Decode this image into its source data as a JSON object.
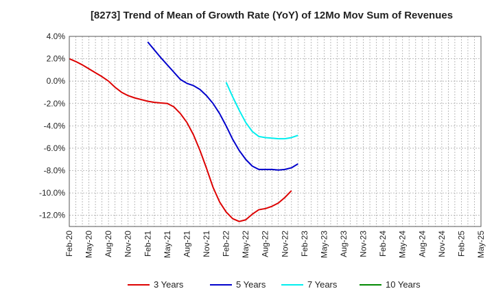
{
  "chart_data": {
    "type": "line",
    "title": "[8273]  Trend of Mean of Growth Rate (YoY) of 12Mo Mov Sum of Revenues",
    "xlabel": "",
    "ylabel": "",
    "ylim": [
      -13.0,
      4.0
    ],
    "y_ticks": [
      4.0,
      2.0,
      0.0,
      -2.0,
      -4.0,
      -6.0,
      -8.0,
      -10.0,
      -12.0
    ],
    "y_tick_labels": [
      "4.0%",
      "2.0%",
      "0.0%",
      "-2.0%",
      "-4.0%",
      "-6.0%",
      "-8.0%",
      "-10.0%",
      "-12.0%"
    ],
    "x_tick_labels": [
      "Feb-20",
      "May-20",
      "Aug-20",
      "Nov-20",
      "Feb-21",
      "May-21",
      "Aug-21",
      "Nov-21",
      "Feb-22",
      "May-22",
      "Aug-22",
      "Nov-22",
      "Feb-23",
      "May-23",
      "Aug-23",
      "Nov-23",
      "Feb-24",
      "May-24",
      "Aug-24",
      "Nov-24",
      "Feb-25",
      "May-25"
    ],
    "grid": true,
    "legend_position": "bottom",
    "series": [
      {
        "name": "3 Years",
        "color": "#dd0000",
        "start_index": 0,
        "values": [
          2.0,
          1.75,
          1.45,
          1.1,
          0.75,
          0.4,
          0.0,
          -0.55,
          -1.0,
          -1.3,
          -1.5,
          -1.65,
          -1.8,
          -1.9,
          -1.95,
          -2.0,
          -2.3,
          -2.9,
          -3.7,
          -4.8,
          -6.2,
          -7.8,
          -9.5,
          -10.8,
          -11.7,
          -12.3,
          -12.55,
          -12.4,
          -11.9,
          -11.5,
          -11.4,
          -11.2,
          -10.9,
          -10.4,
          -9.8
        ]
      },
      {
        "name": "5 Years",
        "color": "#0000cc",
        "start_index": 12,
        "values": [
          3.5,
          2.8,
          2.1,
          1.45,
          0.8,
          0.15,
          -0.2,
          -0.4,
          -0.75,
          -1.3,
          -2.0,
          -2.9,
          -4.0,
          -5.2,
          -6.2,
          -7.0,
          -7.6,
          -7.9,
          -7.9,
          -7.9,
          -7.95,
          -7.9,
          -7.75,
          -7.4
        ]
      },
      {
        "name": "7 Years",
        "color": "#00eeee",
        "start_index": 24,
        "values": [
          -0.1,
          -1.4,
          -2.6,
          -3.7,
          -4.5,
          -4.95,
          -5.05,
          -5.1,
          -5.15,
          -5.15,
          -5.05,
          -4.85
        ]
      },
      {
        "name": "10 Years",
        "color": "#008800",
        "start_index": 0,
        "values": []
      }
    ]
  }
}
